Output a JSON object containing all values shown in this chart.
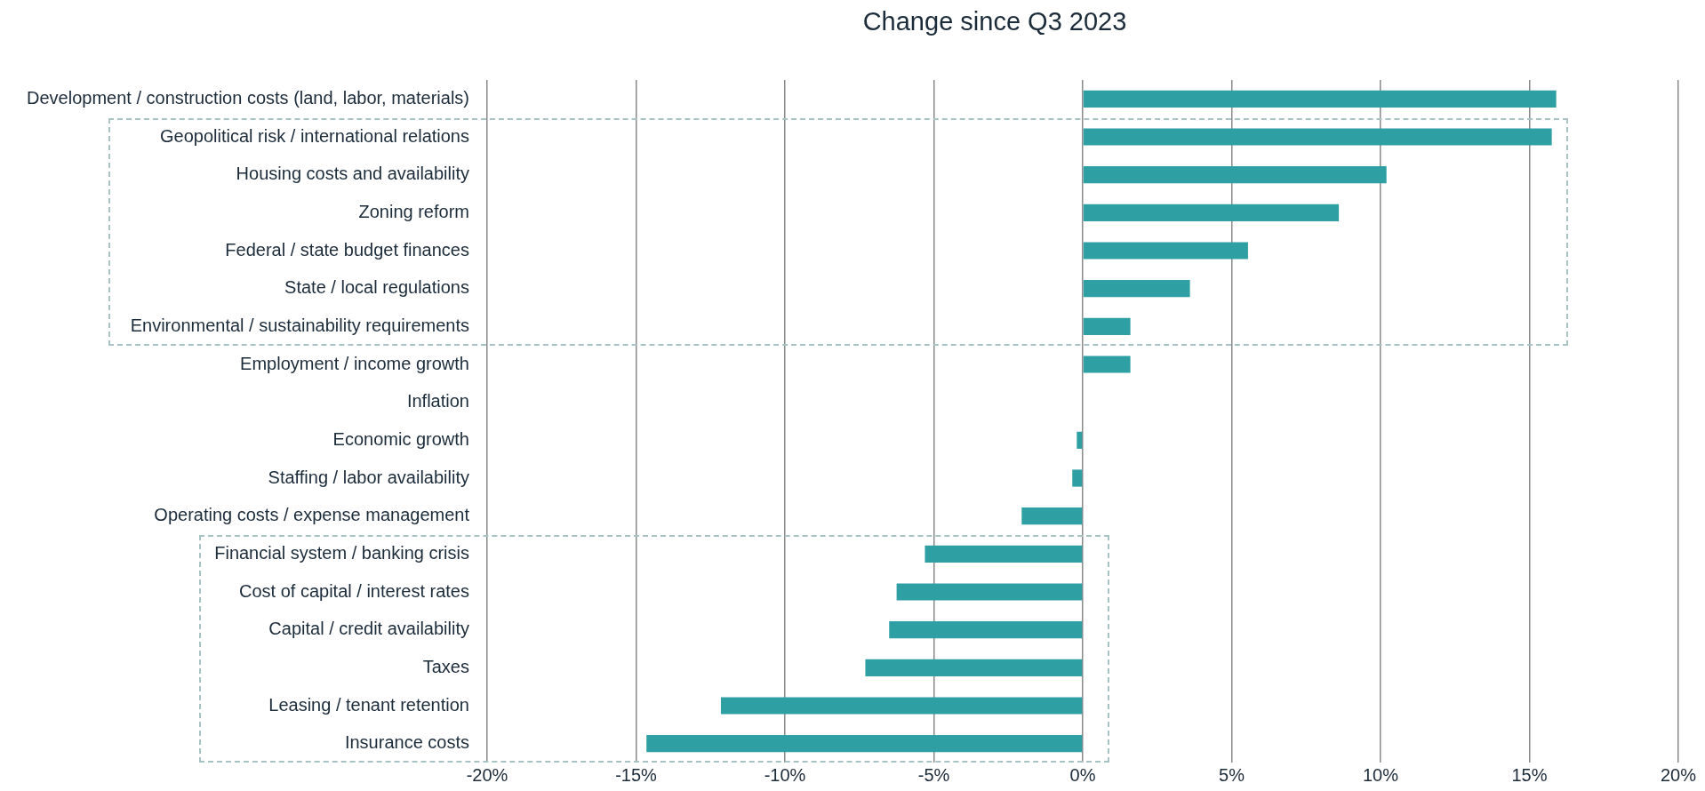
{
  "chart_data": {
    "type": "bar",
    "orientation": "horizontal",
    "title": "Change since Q3 2023",
    "categories": [
      "Development / construction costs (land, labor, materials)",
      "Geopolitical risk / international relations",
      "Housing costs and availability",
      "Zoning reform",
      "Federal / state budget finances",
      "State / local regulations",
      "Environmental / sustainability requirements",
      "Employment / income growth",
      "Inflation",
      "Economic growth",
      "Staffing / labor availability",
      "Operating costs / expense management",
      "Financial system / banking crisis",
      "Cost of capital / interest rates",
      "Capital / credit availability",
      "Taxes",
      "Leasing / tenant retention",
      "Insurance costs"
    ],
    "values": [
      15.9,
      15.75,
      10.2,
      8.6,
      5.55,
      3.6,
      1.6,
      1.6,
      0,
      -0.2,
      -0.35,
      -2.05,
      -5.3,
      -6.25,
      -6.5,
      -7.3,
      -12.15,
      -14.65
    ],
    "color": "#2e9fa3",
    "xlim": [
      -20,
      20
    ],
    "xticks": [
      {
        "value": -20,
        "label": "-20%"
      },
      {
        "value": -15,
        "label": "-15%"
      },
      {
        "value": -10,
        "label": "-10%"
      },
      {
        "value": -5,
        "label": "-5%"
      },
      {
        "value": 0,
        "label": "0%"
      },
      {
        "value": 5,
        "label": "5%"
      },
      {
        "value": 10,
        "label": "10%"
      },
      {
        "value": 15,
        "label": "15%"
      },
      {
        "value": 20,
        "label": "20%"
      }
    ],
    "grid": "x",
    "legend": false
  }
}
